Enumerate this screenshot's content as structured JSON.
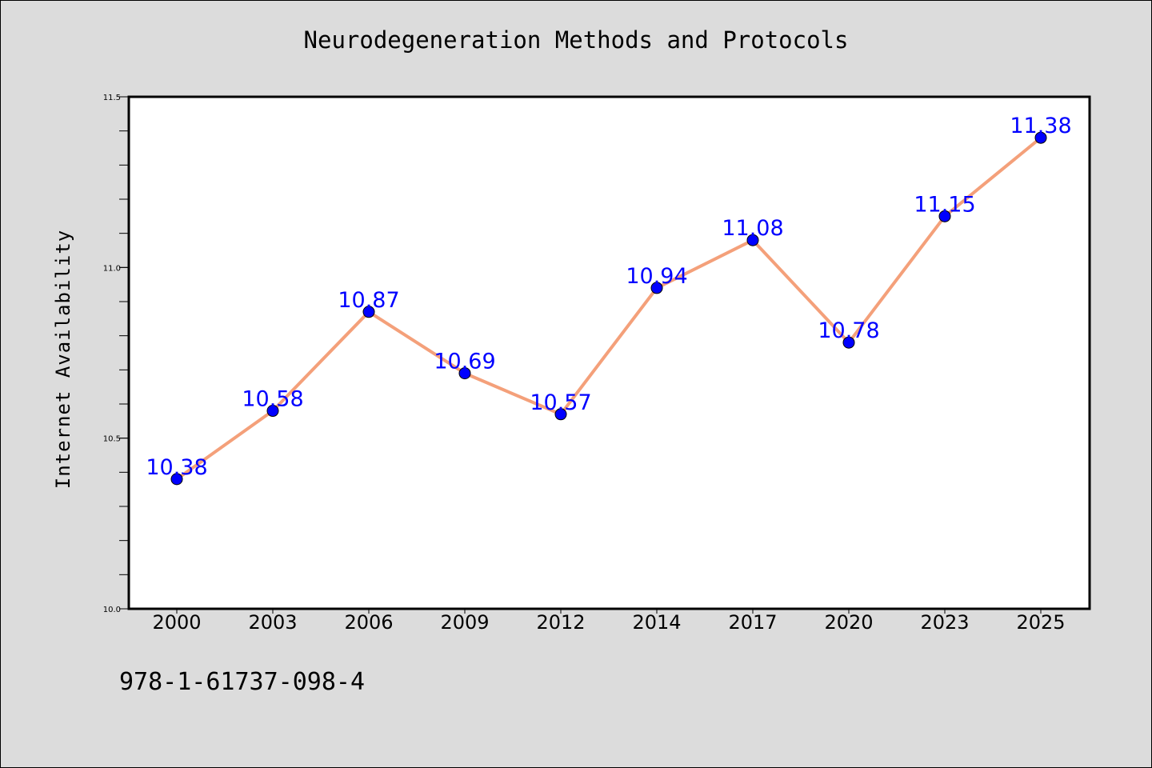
{
  "chart_data": {
    "type": "line",
    "title": "Neurodegeneration Methods and Protocols",
    "xlabel": "",
    "ylabel": "Internet Availability",
    "categories": [
      "2000",
      "2003",
      "2006",
      "2009",
      "2012",
      "2014",
      "2017",
      "2020",
      "2023",
      "2025"
    ],
    "series": [
      {
        "values": [
          10.38,
          10.58,
          10.87,
          10.69,
          10.57,
          10.94,
          11.08,
          10.78,
          11.15,
          11.38
        ],
        "data_labels": [
          "10.38",
          "10.58",
          "10.87",
          "10.69",
          "10.57",
          "10.94",
          "11.08",
          "10.78",
          "11.15",
          "11.38"
        ]
      }
    ],
    "ylim": [
      10.0,
      11.5
    ],
    "y_ticks": [
      "10.0",
      "10.5",
      "11.0",
      "11.5"
    ],
    "grid": false,
    "colors": {
      "line": "#f4a07a",
      "marker": "#0000ff",
      "label": "#0000ff",
      "background": "#dcdcdc",
      "plot_area": "#ffffff"
    }
  },
  "annotation": "978-1-61737-098-4"
}
